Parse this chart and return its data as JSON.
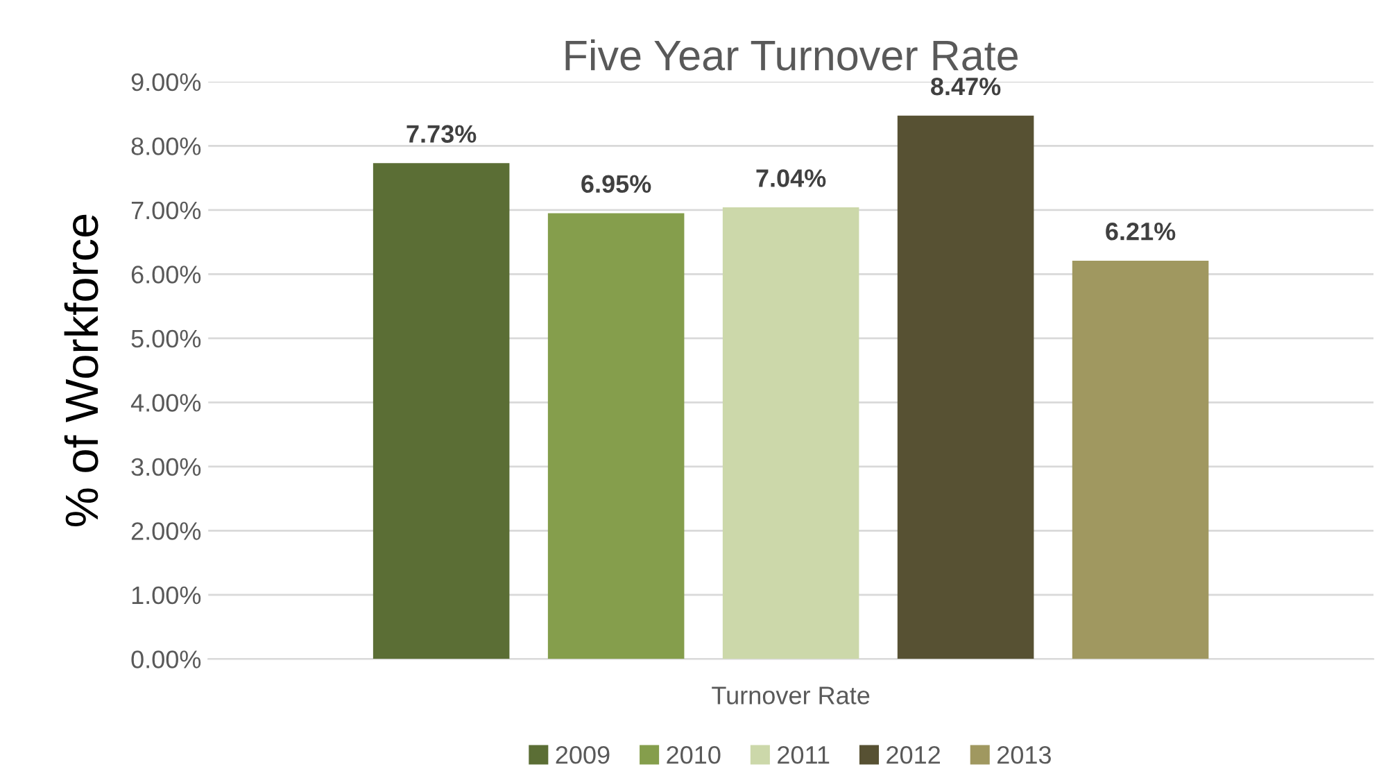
{
  "chart_data": {
    "type": "bar",
    "title": "Five Year Turnover Rate",
    "ylabel": "% of Workforce",
    "categories": [
      "Turnover Rate"
    ],
    "series": [
      {
        "name": "2009",
        "color": "#5b6e35",
        "values": [
          7.73
        ],
        "value_labels": [
          "7.73%"
        ]
      },
      {
        "name": "2010",
        "color": "#859e4c",
        "values": [
          6.95
        ],
        "value_labels": [
          "6.95%"
        ]
      },
      {
        "name": "2011",
        "color": "#ccd8aa",
        "values": [
          7.04
        ],
        "value_labels": [
          "7.04%"
        ]
      },
      {
        "name": "2012",
        "color": "#575133",
        "values": [
          8.47
        ],
        "value_labels": [
          "8.47%"
        ]
      },
      {
        "name": "2013",
        "color": "#a09860",
        "values": [
          6.21
        ],
        "value_labels": [
          "6.21%"
        ]
      }
    ],
    "ylim": [
      0,
      9
    ],
    "yticks": [
      {
        "value": 0,
        "label": "0.00%"
      },
      {
        "value": 1,
        "label": "1.00%"
      },
      {
        "value": 2,
        "label": "2.00%"
      },
      {
        "value": 3,
        "label": "3.00%"
      },
      {
        "value": 4,
        "label": "4.00%"
      },
      {
        "value": 5,
        "label": "5.00%"
      },
      {
        "value": 6,
        "label": "6.00%"
      },
      {
        "value": 7,
        "label": "7.00%"
      },
      {
        "value": 8,
        "label": "8.00%"
      },
      {
        "value": 9,
        "label": "9.00%"
      }
    ],
    "grid": "y",
    "legend": "bottom"
  }
}
